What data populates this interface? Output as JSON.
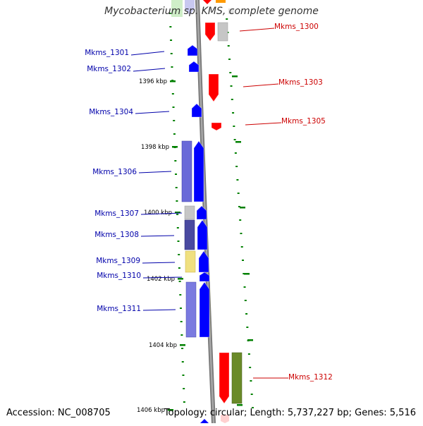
{
  "title": "Mycobacterium sp. KMS, complete genome",
  "footer": {
    "accession": "Accession: NC_008705",
    "topology": "Topology: circular; Length: 5,737,227 bp; Genes: 5,516"
  },
  "colors": {
    "plus_strand_arrow": "#0000ff",
    "minus_strand_arrow": "#ff0000",
    "plus_label": "#0000aa",
    "minus_label": "#cc0000",
    "backbone": "#888888",
    "tick": "#008000"
  },
  "kbp_labels": [
    "1396 kbp",
    "1398 kbp",
    "1400 kbp",
    "1402 kbp",
    "1404 kbp",
    "1406 kbp"
  ],
  "genes": [
    {
      "name": "Mkms_1300",
      "strand": "-",
      "side": "right"
    },
    {
      "name": "Mkms_1301",
      "strand": "+",
      "side": "left"
    },
    {
      "name": "Mkms_1302",
      "strand": "+",
      "side": "left"
    },
    {
      "name": "Mkms_1303",
      "strand": "-",
      "side": "right"
    },
    {
      "name": "Mkms_1304",
      "strand": "+",
      "side": "left"
    },
    {
      "name": "Mkms_1305",
      "strand": "-",
      "side": "right"
    },
    {
      "name": "Mkms_1306",
      "strand": "+",
      "side": "left"
    },
    {
      "name": "Mkms_1307",
      "strand": "+",
      "side": "left"
    },
    {
      "name": "Mkms_1308",
      "strand": "+",
      "side": "left"
    },
    {
      "name": "Mkms_1309",
      "strand": "+",
      "side": "left"
    },
    {
      "name": "Mkms_1310",
      "strand": "+",
      "side": "left"
    },
    {
      "name": "Mkms_1311",
      "strand": "+",
      "side": "left"
    },
    {
      "name": "Mkms_1312",
      "strand": "-",
      "side": "right"
    }
  ]
}
